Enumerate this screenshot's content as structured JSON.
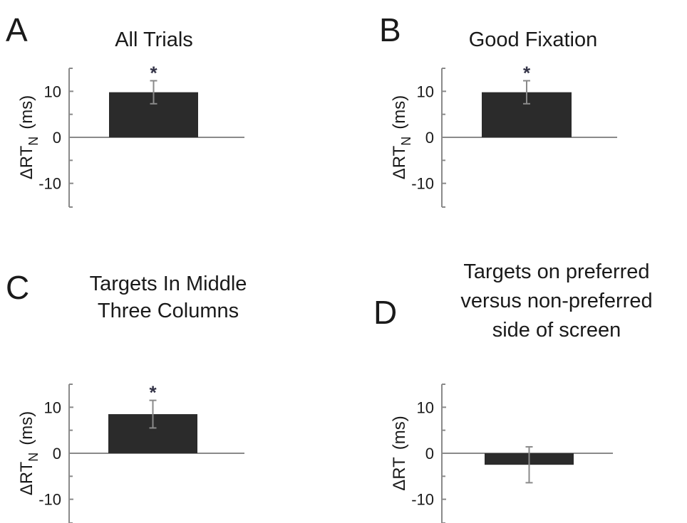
{
  "chart_data": [
    {
      "type": "bar",
      "panel_label": "A",
      "title_lines": [
        "All Trials"
      ],
      "ylabel_main": "ΔRT",
      "ylabel_sub": "N",
      "ylabel_unit": "(ms)",
      "ylim": [
        -15,
        15
      ],
      "yticks": [
        -10,
        0,
        10
      ],
      "ytick_labels": [
        "-10",
        "0",
        "10"
      ],
      "values": [
        9.8
      ],
      "error": [
        2.5
      ],
      "significance": [
        "*"
      ],
      "grid": false
    },
    {
      "type": "bar",
      "panel_label": "B",
      "title_lines": [
        "Good Fixation"
      ],
      "ylabel_main": "ΔRT",
      "ylabel_sub": "N",
      "ylabel_unit": "(ms)",
      "ylim": [
        -15,
        15
      ],
      "yticks": [
        -10,
        0,
        10
      ],
      "ytick_labels": [
        "-10",
        "0",
        "10"
      ],
      "values": [
        9.8
      ],
      "error": [
        2.5
      ],
      "significance": [
        "*"
      ],
      "grid": false
    },
    {
      "type": "bar",
      "panel_label": "C",
      "title_lines": [
        "Targets In Middle",
        "Three Columns"
      ],
      "ylabel_main": "ΔRT",
      "ylabel_sub": "N",
      "ylabel_unit": "(ms)",
      "ylim": [
        -15,
        15
      ],
      "yticks": [
        -10,
        0,
        10
      ],
      "ytick_labels": [
        "-10",
        "0",
        "10"
      ],
      "values": [
        8.5
      ],
      "error": [
        3.0
      ],
      "significance": [
        "*"
      ],
      "grid": false
    },
    {
      "type": "bar",
      "panel_label": "D",
      "title_lines": [
        "Targets on preferred",
        "versus non-preferred",
        "side of screen"
      ],
      "ylabel_main": "ΔRT",
      "ylabel_sub": "",
      "ylabel_unit": "(ms)",
      "ylim": [
        -15,
        15
      ],
      "yticks": [
        -10,
        0,
        10
      ],
      "ytick_labels": [
        "-10",
        "0",
        "10"
      ],
      "values": [
        -2.5
      ],
      "error": [
        3.9
      ],
      "significance": [
        ""
      ],
      "grid": false
    }
  ]
}
